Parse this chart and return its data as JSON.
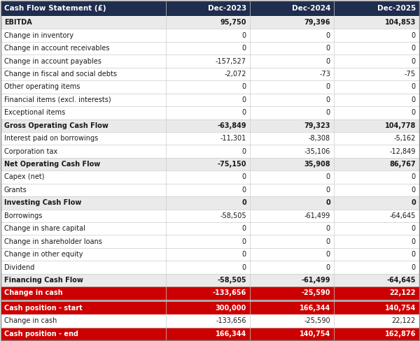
{
  "title": "Cash Flow Statement (£)",
  "columns": [
    "Dec-2023",
    "Dec-2024",
    "Dec-2025"
  ],
  "rows": [
    {
      "label": "EBITDA",
      "values": [
        "95,750",
        "79,396",
        "104,853"
      ],
      "style": "bold",
      "bg": "#eaeaea"
    },
    {
      "label": "Change in inventory",
      "values": [
        "0",
        "0",
        "0"
      ],
      "style": "normal",
      "bg": "#ffffff"
    },
    {
      "label": "Change in account receivables",
      "values": [
        "0",
        "0",
        "0"
      ],
      "style": "normal",
      "bg": "#ffffff"
    },
    {
      "label": "Change in account payables",
      "values": [
        "-157,527",
        "0",
        "0"
      ],
      "style": "normal",
      "bg": "#ffffff"
    },
    {
      "label": "Change in fiscal and social debts",
      "values": [
        "-2,072",
        "-73",
        "-75"
      ],
      "style": "normal",
      "bg": "#ffffff"
    },
    {
      "label": "Other operating items",
      "values": [
        "0",
        "0",
        "0"
      ],
      "style": "normal",
      "bg": "#ffffff"
    },
    {
      "label": "Financial items (excl. interests)",
      "values": [
        "0",
        "0",
        "0"
      ],
      "style": "normal",
      "bg": "#ffffff"
    },
    {
      "label": "Exceptional items",
      "values": [
        "0",
        "0",
        "0"
      ],
      "style": "normal",
      "bg": "#ffffff"
    },
    {
      "label": "Gross Operating Cash Flow",
      "values": [
        "-63,849",
        "79,323",
        "104,778"
      ],
      "style": "bold",
      "bg": "#eaeaea"
    },
    {
      "label": "Interest paid on borrowings",
      "values": [
        "-11,301",
        "-8,308",
        "-5,162"
      ],
      "style": "normal",
      "bg": "#ffffff"
    },
    {
      "label": "Corporation tax",
      "values": [
        "0",
        "-35,106",
        "-12,849"
      ],
      "style": "normal",
      "bg": "#ffffff"
    },
    {
      "label": "Net Operating Cash Flow",
      "values": [
        "-75,150",
        "35,908",
        "86,767"
      ],
      "style": "bold",
      "bg": "#eaeaea"
    },
    {
      "label": "Capex (net)",
      "values": [
        "0",
        "0",
        "0"
      ],
      "style": "normal",
      "bg": "#ffffff"
    },
    {
      "label": "Grants",
      "values": [
        "0",
        "0",
        "0"
      ],
      "style": "normal",
      "bg": "#ffffff"
    },
    {
      "label": "Investing Cash Flow",
      "values": [
        "0",
        "0",
        "0"
      ],
      "style": "bold",
      "bg": "#eaeaea"
    },
    {
      "label": "Borrowings",
      "values": [
        "-58,505",
        "-61,499",
        "-64,645"
      ],
      "style": "normal",
      "bg": "#ffffff"
    },
    {
      "label": "Change in share capital",
      "values": [
        "0",
        "0",
        "0"
      ],
      "style": "normal",
      "bg": "#ffffff"
    },
    {
      "label": "Change in shareholder loans",
      "values": [
        "0",
        "0",
        "0"
      ],
      "style": "normal",
      "bg": "#ffffff"
    },
    {
      "label": "Change in other equity",
      "values": [
        "0",
        "0",
        "0"
      ],
      "style": "normal",
      "bg": "#ffffff"
    },
    {
      "label": "Dividend",
      "values": [
        "0",
        "0",
        "0"
      ],
      "style": "normal",
      "bg": "#ffffff"
    },
    {
      "label": "Financing Cash Flow",
      "values": [
        "-58,505",
        "-61,499",
        "-64,645"
      ],
      "style": "bold",
      "bg": "#eaeaea"
    },
    {
      "label": "Change in cash",
      "values": [
        "-133,656",
        "-25,590",
        "22,122"
      ],
      "style": "bold",
      "bg": "#cc0000",
      "separator_after": true
    },
    {
      "label": "Cash position - start",
      "values": [
        "300,000",
        "166,344",
        "140,754"
      ],
      "style": "bold",
      "bg": "#cc0000"
    },
    {
      "label": "Change in cash",
      "values": [
        "-133,656",
        "-25,590",
        "22,122"
      ],
      "style": "normal",
      "bg": "#ffffff"
    },
    {
      "label": "Cash position - end",
      "values": [
        "166,344",
        "140,754",
        "162,876"
      ],
      "style": "bold",
      "bg": "#cc0000"
    }
  ],
  "header_bg": "#1f2d4e",
  "header_text": "#ffffff",
  "red_bg": "#cc0000",
  "red_text": "#ffffff",
  "bold_bg": "#eaeaea",
  "normal_bg": "#ffffff",
  "border_color": "#cccccc",
  "separator_color": "#aaaaaa",
  "fig_width": 6.0,
  "fig_height": 4.88,
  "dpi": 100
}
